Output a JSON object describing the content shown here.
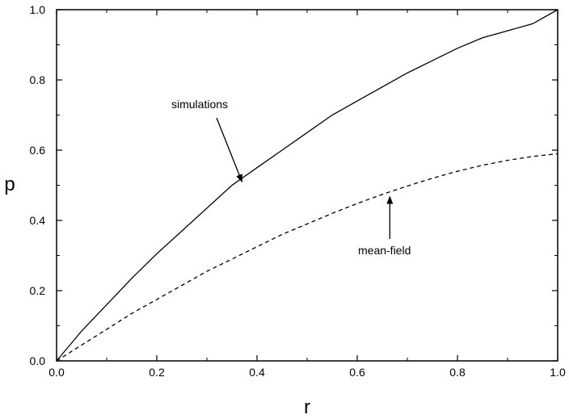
{
  "chart_data": {
    "type": "line",
    "title": "",
    "xlabel": "r",
    "ylabel": "p",
    "xlim": [
      0.0,
      1.0
    ],
    "ylim": [
      0.0,
      1.0
    ],
    "grid": false,
    "x_ticks": [
      "0.0",
      "0.2",
      "0.4",
      "0.6",
      "0.8",
      "1.0"
    ],
    "y_ticks": [
      "0.0",
      "0.2",
      "0.4",
      "0.6",
      "0.8",
      "1.0"
    ],
    "series": [
      {
        "style": "solid",
        "x": [
          0.0,
          0.05,
          0.1,
          0.15,
          0.2,
          0.25,
          0.3,
          0.35,
          0.4,
          0.45,
          0.5,
          0.55,
          0.6,
          0.65,
          0.7,
          0.75,
          0.8,
          0.85,
          0.9,
          0.95,
          1.0
        ],
        "y": [
          0.0,
          0.085,
          0.16,
          0.235,
          0.305,
          0.37,
          0.435,
          0.5,
          0.55,
          0.6,
          0.65,
          0.7,
          0.74,
          0.78,
          0.82,
          0.855,
          0.89,
          0.92,
          0.94,
          0.96,
          1.0
        ]
      },
      {
        "style": "dashed",
        "x": [
          0.0,
          0.05,
          0.1,
          0.15,
          0.2,
          0.25,
          0.3,
          0.35,
          0.4,
          0.45,
          0.5,
          0.55,
          0.6,
          0.65,
          0.7,
          0.75,
          0.8,
          0.85,
          0.9,
          0.95,
          1.0
        ],
        "y": [
          0.0,
          0.045,
          0.09,
          0.135,
          0.175,
          0.215,
          0.255,
          0.29,
          0.325,
          0.36,
          0.39,
          0.42,
          0.448,
          0.474,
          0.498,
          0.52,
          0.54,
          0.557,
          0.571,
          0.582,
          0.59
        ]
      }
    ],
    "annotations": [
      {
        "text": "simulations",
        "target_x": 0.37,
        "target_y": 0.51
      },
      {
        "text": "mean-field",
        "target_x": 0.665,
        "target_y": 0.47
      }
    ]
  }
}
